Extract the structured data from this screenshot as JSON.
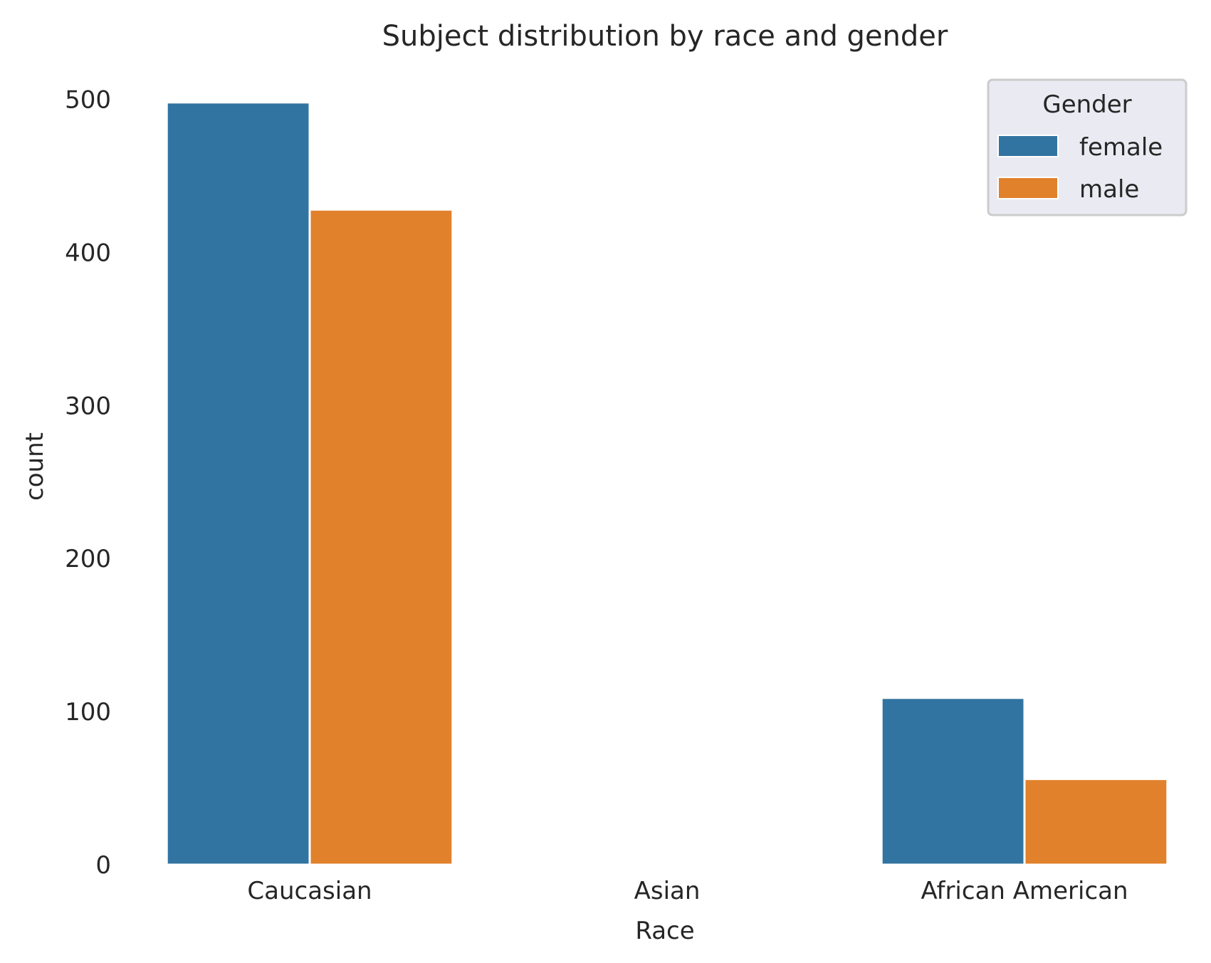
{
  "chart_data": {
    "type": "bar",
    "title": "Subject distribution by race and gender",
    "xlabel": "Race",
    "ylabel": "count",
    "categories": [
      "Caucasian",
      "Asian",
      "African American"
    ],
    "series": [
      {
        "name": "female",
        "values": [
          498,
          1,
          109
        ],
        "color": "#3274A1"
      },
      {
        "name": "male",
        "values": [
          428,
          0,
          56
        ],
        "color": "#E1812C"
      }
    ],
    "ylim": [
      0,
      510
    ],
    "yticks": [
      0,
      100,
      200,
      300,
      400,
      500
    ],
    "grid": false,
    "legend": {
      "title": "Gender",
      "position": "top-right"
    }
  }
}
